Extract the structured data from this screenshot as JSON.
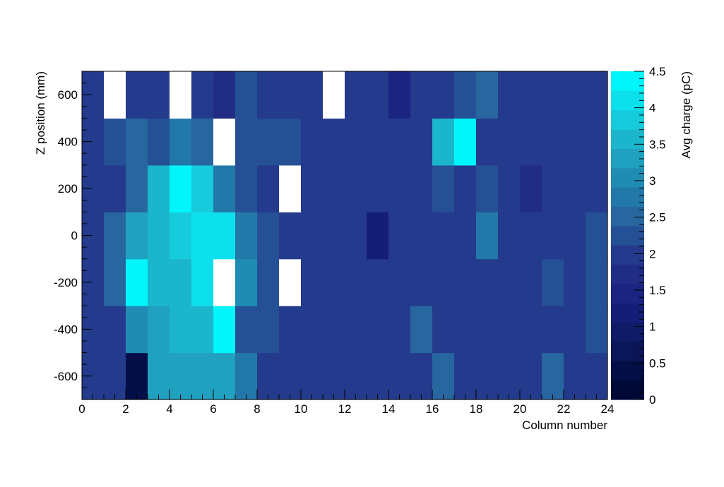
{
  "chart_data": {
    "type": "heatmap",
    "title": "",
    "xlabel": "Column number",
    "ylabel": "Z position (mm)",
    "zlabel": "Avg charge (pC)",
    "xlim": [
      0,
      24
    ],
    "ylim": [
      -700,
      700
    ],
    "zlim": [
      0,
      4.5
    ],
    "x_ticks": [
      "0",
      "2",
      "4",
      "6",
      "8",
      "10",
      "12",
      "14",
      "16",
      "18",
      "20",
      "22",
      "24"
    ],
    "y_ticks": [
      "-600",
      "-400",
      "-200",
      "0",
      "200",
      "400",
      "600"
    ],
    "z_ticks": [
      "0",
      "0.5",
      "1",
      "1.5",
      "2",
      "2.5",
      "3",
      "3.5",
      "4",
      "4.5"
    ],
    "x_edges": [
      0,
      1,
      2,
      3,
      4,
      5,
      6,
      7,
      8,
      9,
      10,
      11,
      12,
      13,
      14,
      15,
      16,
      17,
      18,
      19,
      20,
      21,
      22,
      23,
      24
    ],
    "y_edges": [
      -700,
      -500,
      -300,
      -100,
      100,
      300,
      500,
      700
    ],
    "overflow_color": "#ffffff",
    "palette": [
      "#000835",
      "#050f47",
      "#0a1658",
      "#101b68",
      "#151e76",
      "#1b2480",
      "#212d85",
      "#243a8c",
      "#265096",
      "#27669f",
      "#2278a8",
      "#1f8cb3",
      "#1fa1bf",
      "#1cb6cc",
      "#16cbdc",
      "#0ce0ec",
      "#00f6fb"
    ],
    "values": [
      [
        1.9,
        1.9,
        0.3,
        3.3,
        3.3,
        3.3,
        3.3,
        2.9,
        1.9,
        1.9,
        1.9,
        1.9,
        1.9,
        1.9,
        2.05,
        2.05,
        2.6,
        1.9,
        2.05,
        2.05,
        2.05,
        2.6,
        2.05,
        2.05
      ],
      [
        1.9,
        2.1,
        3.1,
        3.4,
        3.5,
        3.6,
        4.4,
        2.3,
        2.3,
        2.0,
        2.0,
        1.9,
        1.9,
        1.9,
        2.1,
        2.6,
        1.9,
        1.9,
        2.0,
        2.0,
        2.0,
        1.9,
        2.1,
        2.3
      ],
      [
        1.9,
        2.5,
        4.3,
        3.6,
        3.6,
        4.1,
        5.0,
        3.0,
        2.3,
        5.0,
        1.9,
        2.0,
        1.9,
        1.9,
        1.9,
        1.9,
        1.9,
        1.9,
        2.1,
        1.9,
        1.9,
        2.2,
        1.9,
        2.3
      ],
      [
        1.9,
        2.5,
        3.2,
        3.6,
        3.9,
        4.2,
        4.0,
        2.7,
        2.2,
        2.0,
        2.0,
        2.0,
        2.0,
        1.2,
        2.0,
        1.9,
        1.9,
        1.9,
        2.7,
        1.9,
        2.1,
        1.9,
        2.1,
        2.3
      ],
      [
        1.9,
        2.1,
        2.6,
        3.5,
        4.3,
        3.8,
        2.8,
        2.3,
        2.0,
        5.0,
        1.9,
        1.9,
        2.1,
        1.9,
        1.9,
        1.9,
        2.3,
        2.0,
        2.3,
        1.9,
        1.6,
        1.9,
        2.1,
        2.1
      ],
      [
        1.9,
        2.2,
        2.5,
        2.2,
        2.9,
        2.6,
        5.0,
        2.2,
        2.2,
        2.2,
        1.9,
        1.9,
        2.1,
        1.9,
        1.9,
        1.9,
        3.6,
        4.4,
        1.9,
        1.9,
        1.9,
        1.9,
        1.9,
        2.1
      ],
      [
        1.9,
        5.0,
        2.1,
        2.1,
        5.0,
        2.1,
        1.7,
        2.2,
        2.0,
        2.0,
        2.0,
        5.0,
        1.9,
        2.1,
        1.5,
        2.0,
        2.0,
        2.3,
        2.6,
        1.9,
        2.1,
        2.1,
        1.9,
        2.1
      ]
    ]
  }
}
